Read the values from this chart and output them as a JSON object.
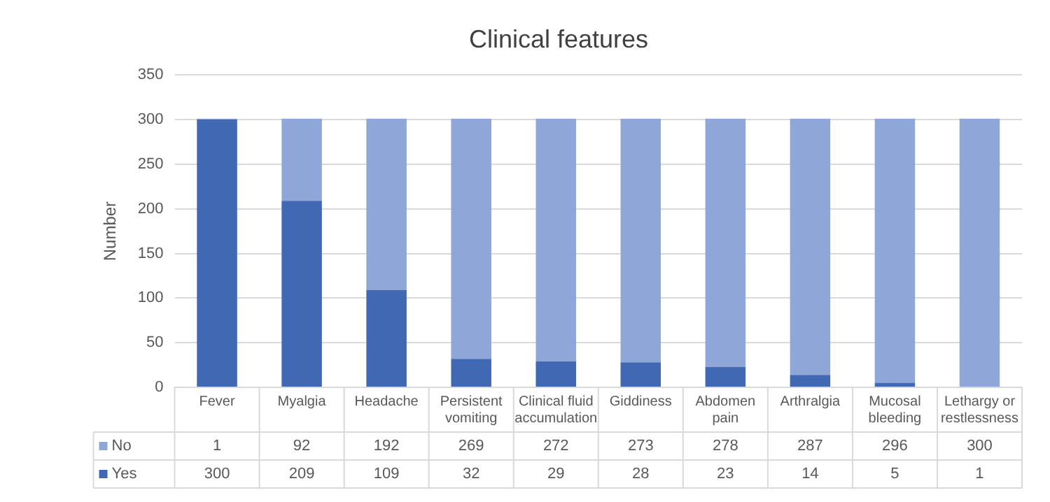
{
  "chart_data": {
    "type": "bar",
    "title": "Clinical features",
    "ylabel": "Number",
    "categories": [
      "Fever",
      "Myalgia",
      "Headache",
      "Persistent vomiting",
      "Clinical fluid accumulation",
      "Giddiness",
      "Abdomen pain",
      "Arthralgia",
      "Mucosal bleeding",
      "Lethargy or restlessness"
    ],
    "stacked": true,
    "series": [
      {
        "name": "Yes",
        "color": "#4068b3",
        "values": [
          300,
          209,
          109,
          32,
          29,
          28,
          23,
          14,
          5,
          1
        ]
      },
      {
        "name": "No",
        "color": "#8fa6d8",
        "values": [
          1,
          92,
          192,
          269,
          272,
          273,
          278,
          287,
          296,
          300
        ]
      }
    ],
    "ylim": [
      0,
      350
    ],
    "yticks": [
      0,
      50,
      100,
      150,
      200,
      250,
      300,
      350
    ],
    "grid": "y",
    "legend": "bottom",
    "data_labels": true
  }
}
